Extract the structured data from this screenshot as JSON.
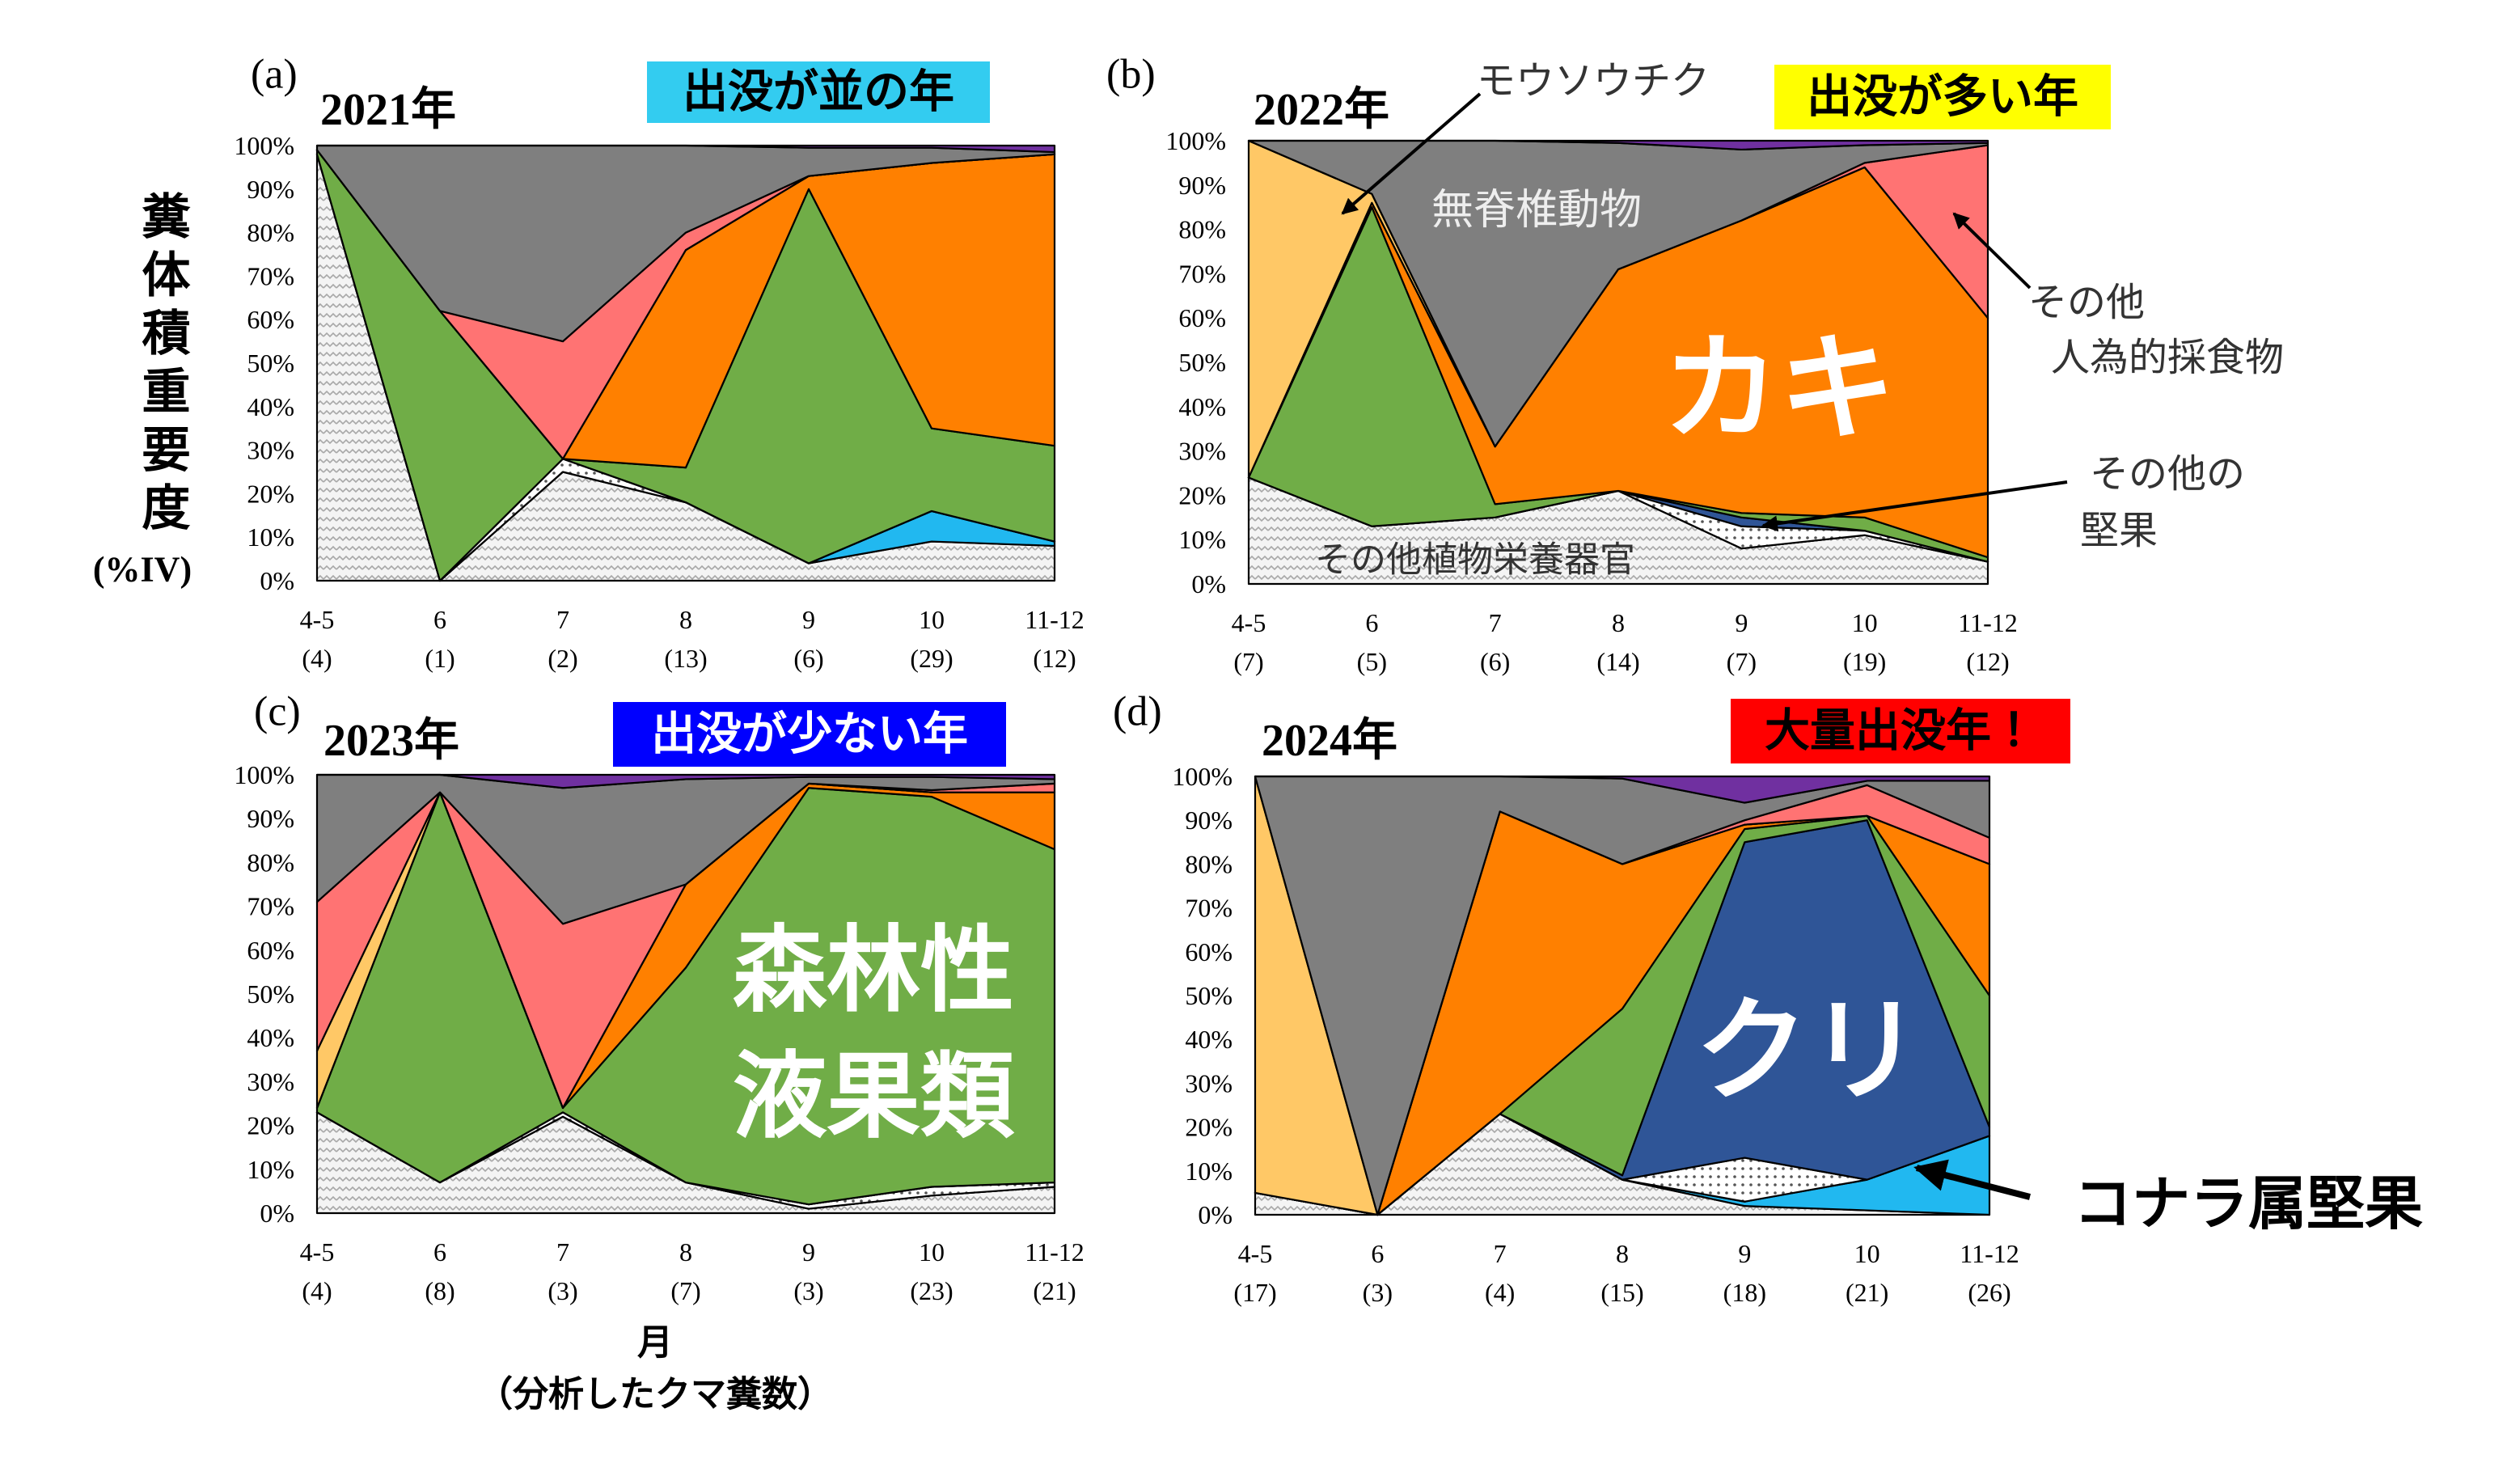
{
  "y_label": "糞体積重要度",
  "y_label_unit": "(%IV)",
  "x_label": "月",
  "x_sublabel": "（分析したクマ糞数）",
  "chart_data": [
    {
      "type": "area",
      "panel": "(a)",
      "title": "2021年",
      "badge": "出没が並の年",
      "badge_color": "#33ccf0",
      "badge_text_color": "#000000",
      "categories": [
        "4-5",
        "6",
        "7",
        "8",
        "9",
        "10",
        "11-12"
      ],
      "category_counts": [
        "(4)",
        "(1)",
        "(2)",
        "(13)",
        "(6)",
        "(29)",
        "(12)"
      ],
      "ylim": [
        0,
        100
      ],
      "yticks": [
        {
          "value": 0,
          "label": "0%"
        },
        {
          "value": 10,
          "label": "10%"
        },
        {
          "value": 20,
          "label": "20%"
        },
        {
          "value": 30,
          "label": "30%"
        },
        {
          "value": 40,
          "label": "40%"
        },
        {
          "value": 50,
          "label": "50%"
        },
        {
          "value": 60,
          "label": "60%"
        },
        {
          "value": 70,
          "label": "70%"
        },
        {
          "value": 80,
          "label": "80%"
        },
        {
          "value": 90,
          "label": "90%"
        },
        {
          "value": 100,
          "label": "100%"
        }
      ],
      "series": [
        {
          "color": "#e8e8e8",
          "hatch": "zigzag",
          "values": [
            98,
            0,
            25,
            18,
            4,
            9,
            8
          ]
        },
        {
          "color": "#21b8f0",
          "values": [
            0,
            0,
            0,
            0,
            0,
            7,
            1
          ]
        },
        {
          "color": "#ffffff",
          "hatch": "dots",
          "values": [
            0,
            0,
            3,
            0,
            0,
            0,
            0
          ]
        },
        {
          "color": "#2f5597",
          "values": [
            0,
            0,
            0,
            0,
            0,
            0,
            0
          ]
        },
        {
          "color": "#70ad47",
          "values": [
            1,
            62,
            0,
            8,
            86,
            19,
            22
          ]
        },
        {
          "color": "#ff8000",
          "values": [
            0,
            0,
            0,
            50,
            3,
            61,
            67
          ]
        },
        {
          "color": "#ffc866",
          "values": [
            0,
            0,
            0,
            0,
            0,
            0,
            0
          ]
        },
        {
          "color": "#ff7373",
          "values": [
            0,
            0,
            27,
            4,
            0,
            0,
            0
          ]
        },
        {
          "color": "#7f7f7f",
          "values": [
            1,
            38,
            45,
            20,
            6.5,
            3.5,
            0.5
          ]
        },
        {
          "color": "#7030a0",
          "values": [
            0,
            0,
            0,
            0,
            0.5,
            0.5,
            1.5
          ]
        }
      ]
    },
    {
      "type": "area",
      "panel": "(b)",
      "title": "2022年",
      "badge": "出没が多い年",
      "badge_color": "#ffff00",
      "badge_text_color": "#000000",
      "categories": [
        "4-5",
        "6",
        "7",
        "8",
        "9",
        "10",
        "11-12"
      ],
      "category_counts": [
        "(7)",
        "(5)",
        "(6)",
        "(14)",
        "(7)",
        "(19)",
        "(12)"
      ],
      "ylim": [
        0,
        100
      ],
      "yticks": [
        {
          "value": 0,
          "label": "0%"
        },
        {
          "value": 10,
          "label": "10%"
        },
        {
          "value": 20,
          "label": "20%"
        },
        {
          "value": 30,
          "label": "30%"
        },
        {
          "value": 40,
          "label": "40%"
        },
        {
          "value": 50,
          "label": "50%"
        },
        {
          "value": 60,
          "label": "60%"
        },
        {
          "value": 70,
          "label": "70%"
        },
        {
          "value": 80,
          "label": "80%"
        },
        {
          "value": 90,
          "label": "90%"
        },
        {
          "value": 100,
          "label": "100%"
        }
      ],
      "series": [
        {
          "color": "#e8e8e8",
          "hatch": "zigzag",
          "values": [
            24,
            13,
            15,
            21,
            8,
            11,
            5
          ]
        },
        {
          "color": "#21b8f0",
          "values": [
            0,
            0,
            0,
            0,
            0,
            0,
            0
          ]
        },
        {
          "color": "#ffffff",
          "hatch": "dots",
          "values": [
            0,
            0,
            0,
            0,
            5,
            1,
            0
          ]
        },
        {
          "color": "#2f5597",
          "values": [
            0,
            0,
            0,
            0,
            2,
            0,
            0
          ]
        },
        {
          "color": "#70ad47",
          "values": [
            0,
            72,
            3,
            0,
            1,
            3,
            1
          ]
        },
        {
          "color": "#ff8000",
          "values": [
            0,
            1,
            13,
            50,
            66,
            79,
            54
          ]
        },
        {
          "color": "#ffc866",
          "values": [
            76,
            2,
            0,
            0,
            0,
            0,
            0
          ]
        },
        {
          "color": "#ff7373",
          "values": [
            0,
            0,
            0,
            0,
            0,
            1,
            39
          ]
        },
        {
          "color": "#7f7f7f",
          "values": [
            0,
            12,
            69,
            28.5,
            16,
            4,
            0.5
          ]
        },
        {
          "color": "#7030a0",
          "values": [
            0,
            0,
            0,
            0.5,
            2,
            1,
            0.5
          ]
        }
      ],
      "annotations": [
        "モウソウチク",
        "無脊椎動物",
        "その他",
        "人為的採食物",
        "カキ",
        "その他の",
        "堅果",
        "その他植物栄養器官"
      ]
    },
    {
      "type": "area",
      "panel": "(c)",
      "title": "2023年",
      "badge": "出没が少ない年",
      "badge_color": "#0000ff",
      "badge_text_color": "#ffffff",
      "categories": [
        "4-5",
        "6",
        "7",
        "8",
        "9",
        "10",
        "11-12"
      ],
      "category_counts": [
        "(4)",
        "(8)",
        "(3)",
        "(7)",
        "(3)",
        "(23)",
        "(21)"
      ],
      "ylim": [
        0,
        100
      ],
      "yticks": [
        {
          "value": 0,
          "label": "0%"
        },
        {
          "value": 10,
          "label": "10%"
        },
        {
          "value": 20,
          "label": "20%"
        },
        {
          "value": 30,
          "label": "30%"
        },
        {
          "value": 40,
          "label": "40%"
        },
        {
          "value": 50,
          "label": "50%"
        },
        {
          "value": 60,
          "label": "60%"
        },
        {
          "value": 70,
          "label": "70%"
        },
        {
          "value": 80,
          "label": "80%"
        },
        {
          "value": 90,
          "label": "90%"
        },
        {
          "value": 100,
          "label": "100%"
        }
      ],
      "series": [
        {
          "color": "#e8e8e8",
          "hatch": "zigzag",
          "values": [
            23,
            7,
            22,
            7,
            1,
            4,
            6
          ]
        },
        {
          "color": "#21b8f0",
          "values": [
            0,
            0,
            0,
            0,
            0,
            0,
            0
          ]
        },
        {
          "color": "#ffffff",
          "hatch": "dots",
          "values": [
            0,
            0,
            1,
            0,
            1,
            2,
            1
          ]
        },
        {
          "color": "#2f5597",
          "values": [
            0,
            0,
            0,
            0,
            0,
            0,
            0
          ]
        },
        {
          "color": "#70ad47",
          "values": [
            1,
            89,
            1,
            49,
            95,
            89,
            76
          ]
        },
        {
          "color": "#ff8000",
          "values": [
            0,
            0,
            0,
            19,
            1,
            1,
            13
          ]
        },
        {
          "color": "#ffc866",
          "values": [
            13,
            0,
            0,
            0,
            0,
            0,
            0
          ]
        },
        {
          "color": "#ff7373",
          "values": [
            34,
            0,
            42,
            0,
            0,
            0.5,
            2
          ]
        },
        {
          "color": "#7f7f7f",
          "values": [
            29,
            4,
            31,
            24,
            1.5,
            3,
            1
          ]
        },
        {
          "color": "#7030a0",
          "values": [
            0,
            0,
            3,
            1,
            0.5,
            0.5,
            1
          ]
        }
      ],
      "annotations": [
        "森林性",
        "液果類"
      ]
    },
    {
      "type": "area",
      "panel": "(d)",
      "title": "2024年",
      "badge": "大量出没年！",
      "badge_color": "#ff0000",
      "badge_text_color": "#000000",
      "categories": [
        "4-5",
        "6",
        "7",
        "8",
        "9",
        "10",
        "11-12"
      ],
      "category_counts": [
        "(17)",
        "(3)",
        "(4)",
        "(15)",
        "(18)",
        "(21)",
        "(26)"
      ],
      "ylim": [
        0,
        100
      ],
      "yticks": [
        {
          "value": 0,
          "label": "0%"
        },
        {
          "value": 10,
          "label": "10%"
        },
        {
          "value": 20,
          "label": "20%"
        },
        {
          "value": 30,
          "label": "30%"
        },
        {
          "value": 40,
          "label": "40%"
        },
        {
          "value": 50,
          "label": "50%"
        },
        {
          "value": 60,
          "label": "60%"
        },
        {
          "value": 70,
          "label": "70%"
        },
        {
          "value": 80,
          "label": "80%"
        },
        {
          "value": 90,
          "label": "90%"
        },
        {
          "value": 100,
          "label": "100%"
        }
      ],
      "series": [
        {
          "color": "#e8e8e8",
          "hatch": "zigzag",
          "values": [
            5,
            0,
            23,
            8,
            2,
            1,
            0
          ]
        },
        {
          "color": "#21b8f0",
          "values": [
            0,
            0,
            0,
            0,
            1,
            7,
            18
          ]
        },
        {
          "color": "#ffffff",
          "hatch": "dots",
          "values": [
            0,
            0,
            0,
            0,
            10,
            0,
            0
          ]
        },
        {
          "color": "#2f5597",
          "values": [
            0,
            0,
            0,
            1,
            72,
            82,
            2
          ]
        },
        {
          "color": "#70ad47",
          "values": [
            0,
            0,
            0,
            38,
            3,
            1,
            30
          ]
        },
        {
          "color": "#ff8000",
          "values": [
            0,
            0,
            69,
            33,
            1,
            0,
            30
          ]
        },
        {
          "color": "#ffc866",
          "values": [
            95,
            0,
            0,
            0,
            0,
            0,
            0
          ]
        },
        {
          "color": "#ff7373",
          "values": [
            0,
            0,
            0,
            0,
            1,
            7,
            6
          ]
        },
        {
          "color": "#7f7f7f",
          "values": [
            0,
            100,
            8,
            19.5,
            4,
            1,
            13
          ]
        },
        {
          "color": "#7030a0",
          "values": [
            0,
            0,
            0,
            0.5,
            6,
            1,
            1
          ]
        }
      ],
      "annotations": [
        "クリ",
        "コナラ属堅果"
      ]
    }
  ]
}
